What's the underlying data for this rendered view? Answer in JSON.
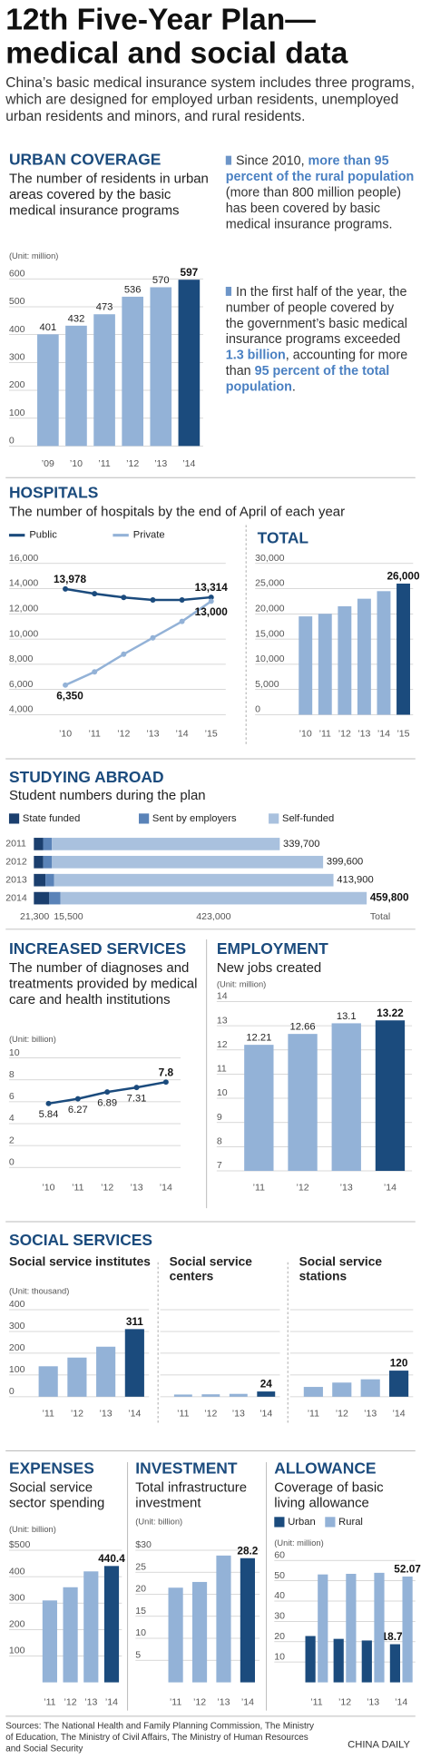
{
  "header": {
    "title": "12th Five-Year Plan—medical and social data",
    "intro": "China’s basic medical insurance system includes three programs, which are designed for employed urban residents, unemployed urban residents and minors, and rural residents."
  },
  "chart_data": [
    {
      "type": "bar",
      "section": "URBAN COVERAGE",
      "title": "The number of residents in urban areas covered by the basic medical insurance programs",
      "unit": "(Unit: million)",
      "categories": [
        "’09",
        "’10",
        "’11",
        "’12",
        "’13",
        "’14"
      ],
      "values": [
        401,
        432,
        473,
        536,
        570,
        597
      ],
      "colors": [
        "#93b2d7",
        "#93b2d7",
        "#93b2d7",
        "#93b2d7",
        "#93b2d7",
        "#1b4b7d"
      ],
      "data_labels": true,
      "ylim": [
        0,
        600
      ],
      "yticks": [
        0,
        100,
        200,
        300,
        400,
        500,
        600
      ],
      "grid": true,
      "notes": [
        [
          {
            "text": "Since 2010, "
          },
          {
            "text": "more than 95 percent of the rural population",
            "highlight": true
          },
          {
            "text": " (more than 800 million people) has been covered by basic medical insurance programs."
          }
        ],
        [
          {
            "text": "In the first half of the year, the number of people covered by the government’s basic medical insurance programs exceeded "
          },
          {
            "text": "1.3 billion",
            "highlight": true
          },
          {
            "text": ", accounting for more than "
          },
          {
            "text": "95 percent of the total population",
            "highlight": true
          },
          {
            "text": "."
          }
        ]
      ]
    },
    {
      "type": "line",
      "section": "HOSPITALS",
      "title": "The number of hospitals by the end of April of each year",
      "categories": [
        "’10",
        "’11",
        "’12",
        "’13",
        "’14",
        "’15"
      ],
      "series": [
        {
          "name": "Public",
          "color": "#1b4b7d",
          "values": [
            13978,
            13600,
            13300,
            13100,
            13100,
            13314
          ],
          "value_labels": [
            "13,978",
            null,
            null,
            null,
            null,
            "13,314"
          ]
        },
        {
          "name": "Private",
          "color": "#93b2d7",
          "values": [
            6350,
            7400,
            8800,
            10100,
            11400,
            13000
          ],
          "value_labels": [
            "6,350",
            null,
            null,
            null,
            null,
            "13,000"
          ]
        }
      ],
      "ylim": [
        4000,
        16000
      ],
      "yticks": [
        {
          "value": 4000,
          "label": "4,000"
        },
        {
          "value": 6000,
          "label": "6,000"
        },
        {
          "value": 8000,
          "label": "8,000"
        },
        {
          "value": 10000,
          "label": "10,000"
        },
        {
          "value": 12000,
          "label": "12,000"
        },
        {
          "value": 14000,
          "label": "14,000"
        },
        {
          "value": 16000,
          "label": "16,000"
        }
      ],
      "grid": true
    },
    {
      "type": "bar",
      "section": "TOTAL",
      "categories": [
        "’10",
        "’11",
        "’12",
        "’13",
        "’14",
        "’15"
      ],
      "values": [
        19500,
        20000,
        21500,
        23000,
        24500,
        26000
      ],
      "value_labels": [
        null,
        null,
        null,
        null,
        null,
        "26,000"
      ],
      "colors": [
        "#93b2d7",
        "#93b2d7",
        "#93b2d7",
        "#93b2d7",
        "#93b2d7",
        "#1b4b7d"
      ],
      "ylim": [
        0,
        30000
      ],
      "yticks": [
        0,
        {
          "value": 5000,
          "label": "5,000"
        },
        {
          "value": 10000,
          "label": "10,000"
        },
        {
          "value": 15000,
          "label": "15,000"
        },
        {
          "value": 20000,
          "label": "20,000"
        },
        {
          "value": 25000,
          "label": "25,000"
        },
        {
          "value": 30000,
          "label": "30,000"
        }
      ],
      "grid": true
    },
    {
      "type": "stacked_hbar",
      "section": "STUDYING ABROAD",
      "title": "Student numbers during the plan",
      "categories": [
        "2011",
        "2012",
        "2013",
        "2014"
      ],
      "series": [
        {
          "name": "State funded",
          "color": "#1b3f6e",
          "values": [
            12800,
            13000,
            16000,
            21300
          ],
          "value_labels": [
            null,
            null,
            null,
            "21,300"
          ]
        },
        {
          "name": "Sent by employers",
          "color": "#5a83b8",
          "values": [
            12100,
            12000,
            12000,
            15500
          ],
          "value_labels": [
            null,
            null,
            null,
            "15,500"
          ]
        },
        {
          "name": "Self-funded",
          "color": "#a9c1de",
          "values": [
            314800,
            374600,
            385900,
            423000
          ],
          "value_labels": [
            null,
            null,
            null,
            "423,000"
          ]
        }
      ],
      "totals": [
        339700,
        399600,
        413900,
        459800
      ],
      "total_labels": [
        "339,700",
        "399,600",
        "413,900",
        "459,800"
      ],
      "total_name": "Total",
      "xlim": [
        0,
        460000
      ]
    },
    {
      "type": "line",
      "section": "INCREASED SERVICES",
      "title": "The number of diagnoses and treatments provided by medical care and health institutions",
      "unit": "(Unit: billion)",
      "categories": [
        "’10",
        "’11",
        "’12",
        "’13",
        "’14"
      ],
      "values": [
        5.84,
        6.27,
        6.89,
        7.31,
        7.8
      ],
      "color": "#1b4b7d",
      "data_labels": true,
      "ylim": [
        0,
        10
      ],
      "yticks": [
        0,
        2,
        4,
        6,
        8,
        10
      ],
      "grid": true
    },
    {
      "type": "bar",
      "section": "EMPLOYMENT",
      "title": "New jobs created",
      "unit": "(Unit: million)",
      "categories": [
        "’11",
        "’12",
        "’13",
        "’14"
      ],
      "values": [
        12.21,
        12.66,
        13.1,
        13.22
      ],
      "colors": [
        "#93b2d7",
        "#93b2d7",
        "#93b2d7",
        "#1b4b7d"
      ],
      "data_labels": true,
      "ylim": [
        7,
        14
      ],
      "yticks": [
        7,
        8,
        9,
        10,
        11,
        12,
        13,
        14
      ],
      "grid": true
    },
    {
      "type": "bar",
      "section": "SOCIAL SERVICES",
      "title": "Social service institutes",
      "unit": "(Unit: thousand)",
      "categories": [
        "’11",
        "’12",
        "’13",
        "’14"
      ],
      "values": [
        140,
        180,
        230,
        311
      ],
      "value_labels": [
        null,
        null,
        null,
        "311"
      ],
      "colors": [
        "#93b2d7",
        "#93b2d7",
        "#93b2d7",
        "#1b4b7d"
      ],
      "ylim": [
        0,
        400
      ],
      "yticks": [
        0,
        100,
        200,
        300,
        400
      ],
      "grid": true
    },
    {
      "type": "bar",
      "title": "Social service centers",
      "categories": [
        "’11",
        "’12",
        "’13",
        "’14"
      ],
      "values": [
        10,
        11,
        13,
        24
      ],
      "value_labels": [
        null,
        null,
        null,
        "24"
      ],
      "colors": [
        "#93b2d7",
        "#93b2d7",
        "#93b2d7",
        "#1b4b7d"
      ],
      "ylim": [
        0,
        400
      ],
      "yticks": [
        0,
        100,
        200,
        300,
        400
      ],
      "grid": true,
      "tick_labels": false
    },
    {
      "type": "bar",
      "title": "Social service stations",
      "categories": [
        "’11",
        "’12",
        "’13",
        "’14"
      ],
      "values": [
        45,
        65,
        80,
        120
      ],
      "value_labels": [
        null,
        null,
        null,
        "120"
      ],
      "colors": [
        "#93b2d7",
        "#93b2d7",
        "#93b2d7",
        "#1b4b7d"
      ],
      "ylim": [
        0,
        400
      ],
      "yticks": [
        0,
        100,
        200,
        300,
        400
      ],
      "grid": true,
      "tick_labels": false
    },
    {
      "type": "bar",
      "section": "EXPENSES",
      "title": "Social service sector spending",
      "unit": "(Unit: billion)",
      "categories": [
        "’11",
        "’12",
        "’13",
        "’14"
      ],
      "values": [
        310,
        360,
        420,
        440.4
      ],
      "value_labels": [
        null,
        null,
        null,
        "440.4"
      ],
      "colors": [
        "#93b2d7",
        "#93b2d7",
        "#93b2d7",
        "#1b4b7d"
      ],
      "ylim": [
        0,
        500
      ],
      "yticks": [
        100,
        200,
        300,
        400,
        {
          "value": 500,
          "label": "$500"
        }
      ],
      "grid": true
    },
    {
      "type": "bar",
      "section": "INVESTMENT",
      "title": "Total infrastructure investment",
      "unit": "(Unit: billion)",
      "categories": [
        "’11",
        "’12",
        "’13",
        "’14"
      ],
      "values": [
        21.5,
        22.8,
        28.8,
        28.2
      ],
      "value_labels": [
        null,
        null,
        null,
        "28.2"
      ],
      "colors": [
        "#93b2d7",
        "#93b2d7",
        "#93b2d7",
        "#1b4b7d"
      ],
      "ylim": [
        0,
        30
      ],
      "yticks": [
        5,
        10,
        15,
        20,
        25,
        {
          "value": 30,
          "label": "$30"
        }
      ],
      "grid": true
    },
    {
      "type": "bar",
      "section": "ALLOWANCE",
      "title": "Coverage of  basic living allowance",
      "unit": "(Unit: million)",
      "categories": [
        "’11",
        "’12",
        "’13",
        "’14"
      ],
      "series": [
        {
          "name": "Urban",
          "color": "#1b4b7d",
          "values": [
            22.8,
            21.4,
            20.6,
            18.77
          ],
          "value_labels": [
            null,
            null,
            null,
            "18.77"
          ]
        },
        {
          "name": "Rural",
          "color": "#93b2d7",
          "values": [
            53.1,
            53.4,
            53.9,
            52.07
          ],
          "value_labels": [
            null,
            null,
            null,
            "52.07"
          ]
        }
      ],
      "ylim": [
        0,
        60
      ],
      "yticks": [
        10,
        20,
        30,
        40,
        50,
        60
      ],
      "grid": true
    }
  ],
  "footer": {
    "sources": "Sources: The National Health and Family Planning Commission, The Ministry of Education, The Ministry of Civil Affairs, The Ministry of Human Resources and Social Security",
    "credit": "CHINA DAILY"
  }
}
